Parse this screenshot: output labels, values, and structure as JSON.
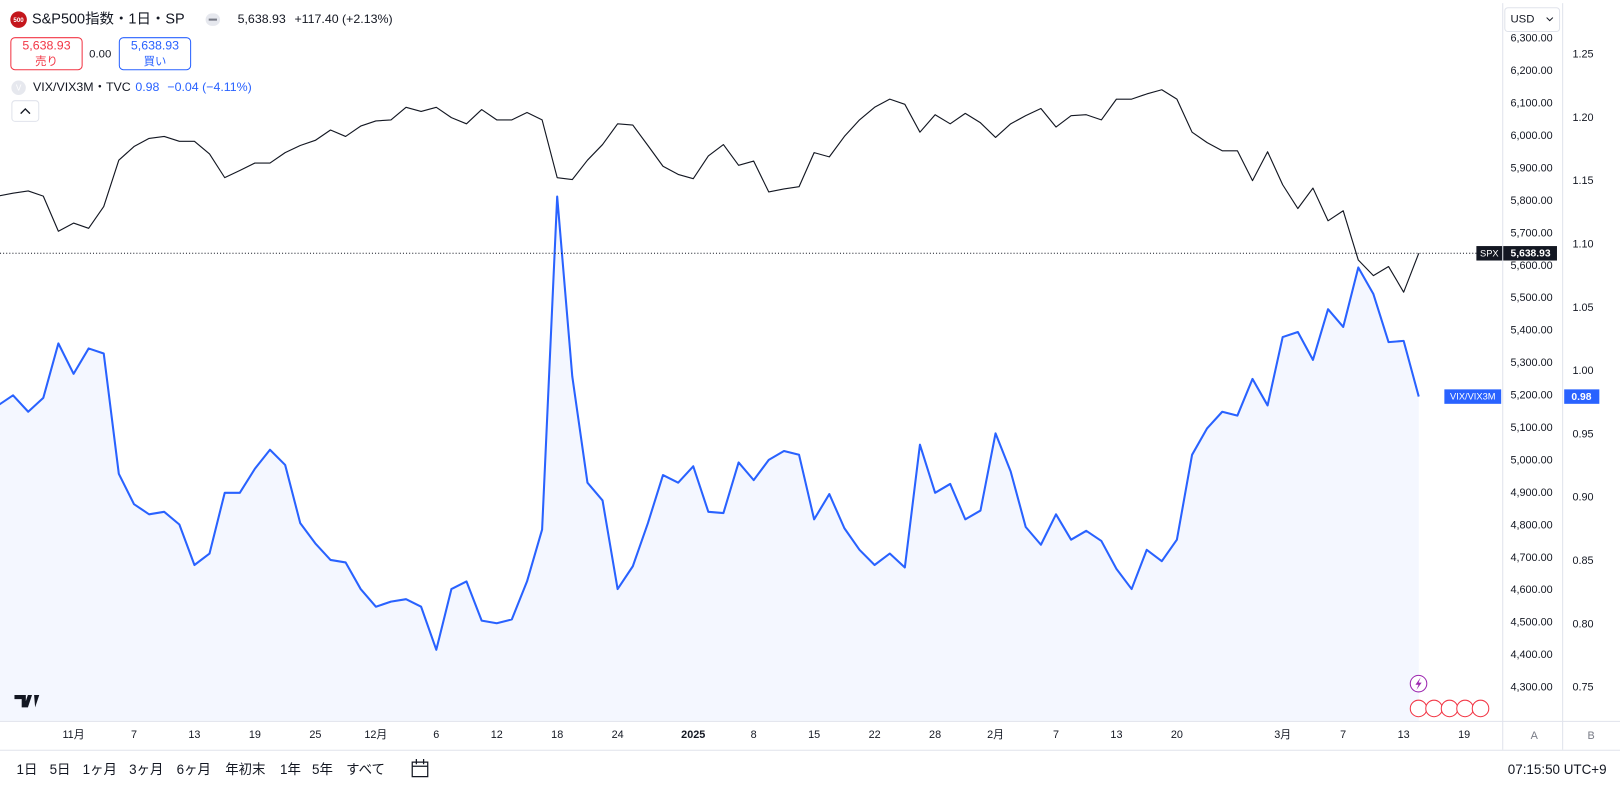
{
  "header": {
    "icon": "500",
    "symbol": "S&P500指数・1日・SP",
    "price": "5,638.93",
    "change": "+117.40 (+2.13%)",
    "sell_price": "5,638.93",
    "sell_label": "売り",
    "spread": "0.00",
    "buy_price": "5,638.93",
    "buy_label": "買い",
    "vix_icon": "V",
    "vix_symbol": "VIX/VIX3M・TVC",
    "vix_value": "0.98",
    "vix_change": "−0.04 (−4.11%)",
    "currency": "USD"
  },
  "footer": {
    "ranges": [
      "1日",
      "5日",
      "1ヶ月",
      "3ヶ月",
      "6ヶ月",
      "年初末",
      "1年",
      "5年",
      "すべて"
    ],
    "time": "07:15:50 UTC+9",
    "scale_a": "A",
    "scale_b": "B"
  },
  "chart_data": {
    "type": "line",
    "grid": false,
    "categories": [
      null,
      null,
      null,
      null,
      null,
      "11月",
      null,
      null,
      null,
      "7",
      null,
      null,
      null,
      "13",
      null,
      null,
      null,
      "19",
      null,
      null,
      null,
      "25",
      null,
      null,
      null,
      "12月",
      null,
      null,
      null,
      "6",
      null,
      null,
      null,
      "12",
      null,
      null,
      null,
      "18",
      null,
      null,
      null,
      "24",
      null,
      null,
      null,
      null,
      "2025",
      null,
      null,
      null,
      "8",
      null,
      null,
      null,
      "15",
      null,
      null,
      null,
      "22",
      null,
      null,
      null,
      "28",
      null,
      null,
      null,
      "2月",
      null,
      null,
      null,
      "7",
      null,
      null,
      null,
      "13",
      null,
      null,
      null,
      "20",
      null,
      null,
      null,
      null,
      null,
      null,
      "3月",
      null,
      null,
      null,
      "7",
      null,
      null,
      null,
      "13",
      null,
      null,
      null,
      "19"
    ],
    "series": [
      {
        "name": "SPX",
        "color": "#131722",
        "axis": "y",
        "values": [
          5815,
          5824,
          5831,
          5815,
          5707,
          5732,
          5716,
          5783,
          5926,
          5968,
          5993,
          5999,
          5984,
          5984,
          5945,
          5872,
          5894,
          5917,
          5917,
          5949,
          5971,
          5987,
          6019,
          5999,
          6031,
          6047,
          6050,
          6089,
          6076,
          6089,
          6057,
          6038,
          6082,
          6050,
          6050,
          6073,
          6050,
          5872,
          5866,
          5926,
          5974,
          6038,
          6034,
          5971,
          5907,
          5882,
          5869,
          5939,
          5974,
          5910,
          5923,
          5828,
          5837,
          5844,
          5949,
          5936,
          5999,
          6050,
          6089,
          6114,
          6098,
          6012,
          6066,
          6038,
          6070,
          6041,
          5996,
          6038,
          6063,
          6085,
          6028,
          6063,
          6066,
          6050,
          6114,
          6114,
          6130,
          6143,
          6114,
          6012,
          5980,
          5955,
          5955,
          5863,
          5952,
          5850,
          5777,
          5840,
          5739,
          5770,
          5618,
          5570,
          5598,
          5519,
          5638.93,
          null,
          null,
          null
        ],
        "value_labels": [
          null,
          null,
          null,
          null,
          null,
          null,
          null,
          null,
          null,
          null,
          null,
          null,
          null,
          null,
          null,
          null,
          null,
          null,
          null,
          null,
          null,
          null,
          null,
          null,
          null,
          null,
          null,
          null,
          null,
          null,
          null,
          null,
          null,
          null,
          null,
          null,
          null,
          null,
          null,
          null,
          null,
          null,
          null,
          null,
          null,
          null,
          null,
          null,
          null,
          null,
          null,
          null,
          null,
          null,
          null,
          null,
          null,
          null,
          null,
          null,
          null,
          null,
          null,
          null,
          null,
          null,
          null,
          null,
          null,
          null,
          null,
          null,
          null,
          null,
          null,
          null,
          null,
          null,
          null,
          null,
          null,
          null,
          null,
          null,
          null,
          null,
          null,
          null,
          null,
          null,
          null,
          null,
          null,
          null,
          "5,638.93",
          null,
          null,
          null
        ]
      },
      {
        "name": "VIX/VIX3M",
        "color": "#2962ff",
        "axis": "y2",
        "values": [
          0.973,
          0.981,
          0.968,
          0.979,
          1.022,
          0.998,
          1.018,
          1.014,
          0.919,
          0.895,
          0.887,
          0.889,
          0.879,
          0.847,
          0.856,
          0.904,
          0.904,
          0.923,
          0.938,
          0.926,
          0.88,
          0.864,
          0.851,
          0.849,
          0.828,
          0.814,
          0.818,
          0.82,
          0.814,
          0.78,
          0.828,
          0.834,
          0.803,
          0.801,
          0.804,
          0.834,
          0.875,
          1.138,
          0.996,
          0.912,
          0.898,
          0.828,
          0.846,
          0.88,
          0.918,
          0.912,
          0.925,
          0.889,
          0.888,
          0.928,
          0.914,
          0.93,
          0.937,
          0.934,
          0.883,
          0.903,
          0.876,
          0.859,
          0.847,
          0.856,
          0.845,
          0.942,
          0.904,
          0.911,
          0.883,
          0.89,
          0.951,
          0.921,
          0.877,
          0.863,
          0.887,
          0.867,
          0.874,
          0.866,
          0.844,
          0.828,
          0.859,
          0.85,
          0.867,
          0.934,
          0.955,
          0.968,
          0.965,
          0.994,
          0.973,
          1.027,
          1.031,
          1.009,
          1.049,
          1.035,
          1.082,
          1.061,
          1.023,
          1.024,
          0.98,
          null,
          null,
          null
        ]
      }
    ],
    "ylim": [
      4198,
      6410
    ],
    "yticks": [
      {
        "value": 4300,
        "label": "4,300.00"
      },
      {
        "value": 4400,
        "label": "4,400.00"
      },
      {
        "value": 4500,
        "label": "4,500.00"
      },
      {
        "value": 4600,
        "label": "4,600.00"
      },
      {
        "value": 4700,
        "label": "4,700.00"
      },
      {
        "value": 4800,
        "label": "4,800.00"
      },
      {
        "value": 4900,
        "label": "4,900.00"
      },
      {
        "value": 5000,
        "label": "5,000.00"
      },
      {
        "value": 5100,
        "label": "5,100.00"
      },
      {
        "value": 5200,
        "label": "5,200.00"
      },
      {
        "value": 5300,
        "label": "5,300.00"
      },
      {
        "value": 5400,
        "label": "5,400.00"
      },
      {
        "value": 5500,
        "label": "5,500.00"
      },
      {
        "value": 5600,
        "label": "5,600.00"
      },
      {
        "value": 5700,
        "label": "5,700.00"
      },
      {
        "value": 5800,
        "label": "5,800.00"
      },
      {
        "value": 5900,
        "label": "5,900.00"
      },
      {
        "value": 6000,
        "label": "6,000.00"
      },
      {
        "value": 6100,
        "label": "6,100.00"
      },
      {
        "value": 6200,
        "label": "6,200.00"
      },
      {
        "value": 6300,
        "label": "6,300.00"
      }
    ],
    "y2lim": [
      0.7239,
      1.2908
    ],
    "y2ticks": [
      0.75,
      {
        "value": 0.8,
        "label": "0.80"
      },
      0.85,
      {
        "value": 0.9,
        "label": "0.90"
      },
      0.95,
      {
        "value": 1.0,
        "label": "1.00"
      },
      1.05,
      {
        "value": 1.1,
        "label": "1.10"
      },
      1.15,
      {
        "value": 1.2,
        "label": "1.20"
      },
      1.25
    ]
  }
}
